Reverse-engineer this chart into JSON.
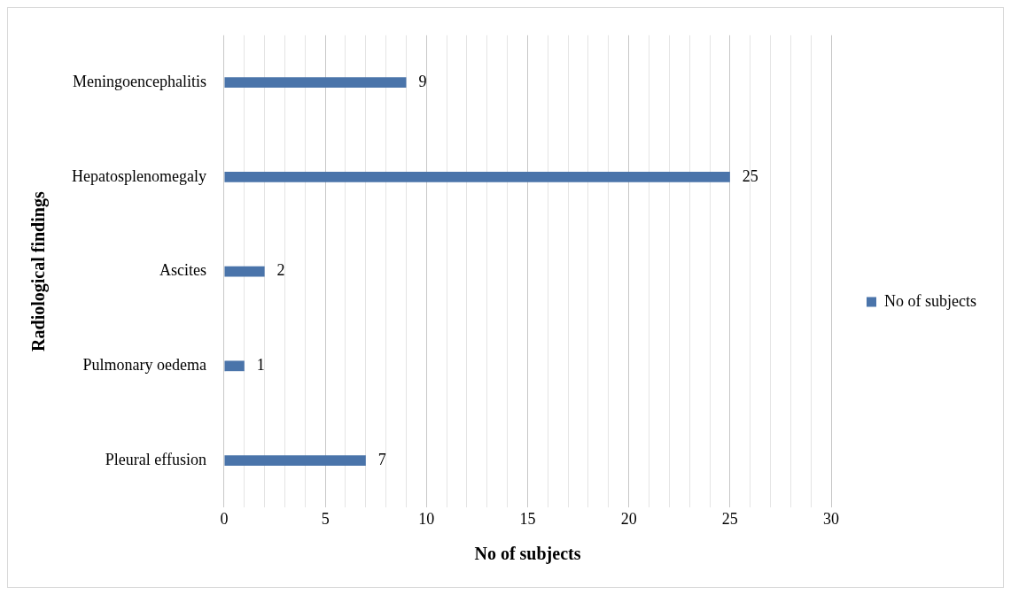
{
  "chart_data": {
    "type": "bar",
    "orientation": "horizontal",
    "xlabel": "No of subjects",
    "ylabel": "Radiological findings",
    "categories": [
      "Meningoencephalitis",
      "Hepatosplenomegaly",
      "Ascites",
      "Pulmonary oedema",
      "Pleural effusion"
    ],
    "series": [
      {
        "name": "No of subjects",
        "color": "#4a74aa",
        "values": [
          9,
          25,
          2,
          1,
          7
        ]
      }
    ],
    "xlim": [
      0,
      30
    ],
    "xticks": [
      0,
      {
        "value": 1,
        "label": null
      },
      {
        "value": 2,
        "label": null
      },
      {
        "value": 3,
        "label": null
      },
      {
        "value": 4,
        "label": null
      },
      5,
      {
        "value": 6,
        "label": null
      },
      {
        "value": 7,
        "label": null
      },
      {
        "value": 8,
        "label": null
      },
      {
        "value": 9,
        "label": null
      },
      10,
      {
        "value": 11,
        "label": null
      },
      {
        "value": 12,
        "label": null
      },
      {
        "value": 13,
        "label": null
      },
      {
        "value": 14,
        "label": null
      },
      15,
      {
        "value": 16,
        "label": null
      },
      {
        "value": 17,
        "label": null
      },
      {
        "value": 18,
        "label": null
      },
      {
        "value": 19,
        "label": null
      },
      20,
      {
        "value": 21,
        "label": null
      },
      {
        "value": 22,
        "label": null
      },
      {
        "value": 23,
        "label": null
      },
      {
        "value": 24,
        "label": null
      },
      25,
      {
        "value": 26,
        "label": null
      },
      {
        "value": 27,
        "label": null
      },
      {
        "value": 28,
        "label": null
      },
      {
        "value": 29,
        "label": null
      },
      30
    ],
    "grid": "x",
    "legend": "right",
    "data_labels": true
  }
}
